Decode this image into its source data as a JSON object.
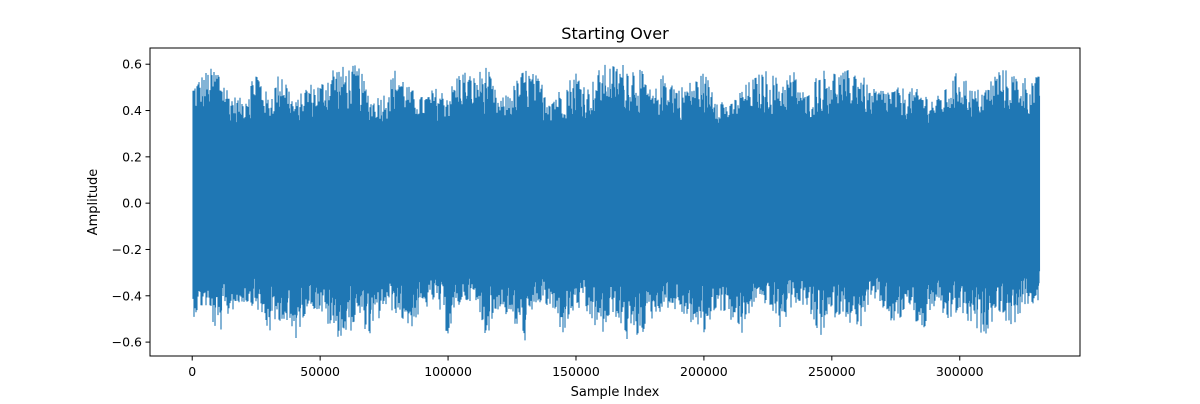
{
  "chart_data": {
    "type": "line",
    "title": "Starting Over",
    "xlabel": "Sample Index",
    "ylabel": "Amplitude",
    "xlim": [
      -16500,
      347000
    ],
    "ylim": [
      -0.66,
      0.67
    ],
    "xticks": [
      0,
      50000,
      100000,
      150000,
      200000,
      250000,
      300000
    ],
    "xtick_labels": [
      "0",
      "50000",
      "100000",
      "150000",
      "200000",
      "250000",
      "300000"
    ],
    "yticks": [
      -0.6,
      -0.4,
      -0.2,
      0.0,
      0.2,
      0.4,
      0.6
    ],
    "ytick_labels": [
      "−0.6",
      "−0.4",
      "−0.2",
      "0.0",
      "0.2",
      "0.4",
      "0.6"
    ],
    "grid": false,
    "legend": "none",
    "series": [
      {
        "color": "#1f77b4",
        "sample_count": 331000,
        "envelope_x": [
          0,
          5000,
          10000,
          15000,
          20000,
          25000,
          30000,
          35000,
          40000,
          45000,
          50000,
          55000,
          60000,
          65000,
          70000,
          75000,
          80000,
          85000,
          90000,
          95000,
          100000,
          105000,
          110000,
          115000,
          120000,
          125000,
          130000,
          135000,
          140000,
          145000,
          150000,
          155000,
          160000,
          165000,
          170000,
          175000,
          180000,
          185000,
          190000,
          195000,
          200000,
          205000,
          210000,
          215000,
          220000,
          225000,
          230000,
          235000,
          240000,
          245000,
          250000,
          255000,
          260000,
          265000,
          270000,
          275000,
          280000,
          285000,
          290000,
          295000,
          300000,
          305000,
          310000,
          315000,
          320000,
          325000,
          331000
        ],
        "envelope_max": [
          0.52,
          0.57,
          0.6,
          0.47,
          0.45,
          0.6,
          0.45,
          0.6,
          0.43,
          0.52,
          0.52,
          0.6,
          0.59,
          0.6,
          0.45,
          0.48,
          0.6,
          0.5,
          0.46,
          0.5,
          0.48,
          0.59,
          0.55,
          0.6,
          0.44,
          0.5,
          0.59,
          0.55,
          0.47,
          0.5,
          0.58,
          0.5,
          0.6,
          0.6,
          0.61,
          0.59,
          0.47,
          0.58,
          0.5,
          0.53,
          0.57,
          0.48,
          0.42,
          0.5,
          0.55,
          0.58,
          0.53,
          0.58,
          0.46,
          0.58,
          0.58,
          0.57,
          0.6,
          0.49,
          0.5,
          0.5,
          0.5,
          0.49,
          0.45,
          0.5,
          0.59,
          0.49,
          0.5,
          0.59,
          0.57,
          0.55,
          0.55
        ],
        "envelope_min": [
          -0.5,
          -0.44,
          -0.58,
          -0.47,
          -0.43,
          -0.45,
          -0.57,
          -0.5,
          -0.61,
          -0.45,
          -0.47,
          -0.57,
          -0.59,
          -0.5,
          -0.59,
          -0.45,
          -0.48,
          -0.55,
          -0.47,
          -0.42,
          -0.58,
          -0.43,
          -0.42,
          -0.58,
          -0.45,
          -0.52,
          -0.6,
          -0.43,
          -0.46,
          -0.57,
          -0.45,
          -0.5,
          -0.58,
          -0.48,
          -0.6,
          -0.58,
          -0.5,
          -0.45,
          -0.47,
          -0.52,
          -0.58,
          -0.45,
          -0.5,
          -0.58,
          -0.42,
          -0.44,
          -0.55,
          -0.43,
          -0.45,
          -0.59,
          -0.5,
          -0.48,
          -0.58,
          -0.42,
          -0.46,
          -0.55,
          -0.44,
          -0.58,
          -0.45,
          -0.52,
          -0.47,
          -0.55,
          -0.57,
          -0.46,
          -0.55,
          -0.45,
          -0.43
        ]
      }
    ]
  }
}
